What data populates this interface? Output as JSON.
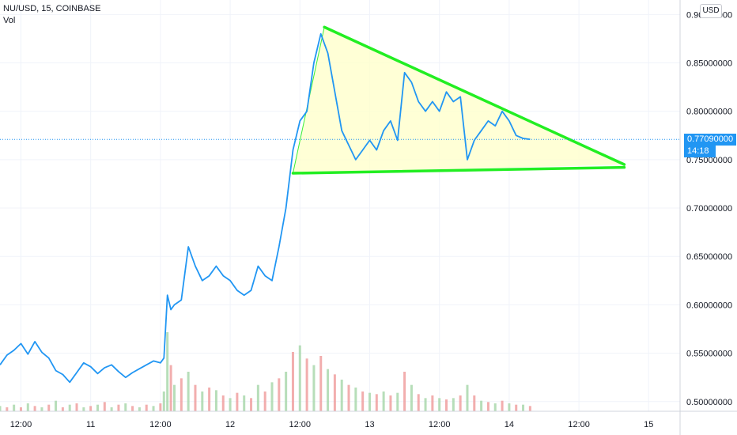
{
  "header": {
    "symbol": "NU/USD, 15, COINBASE",
    "indicator": "Vol",
    "currency_button": "USD"
  },
  "price_tag": {
    "last_price": "0.77090000",
    "countdown": "14:18"
  },
  "colors": {
    "price_line": "#2196f3",
    "last_price_bg": "#2196f3",
    "triangle_stroke": "#22ee22",
    "triangle_fill": "#ffffcc",
    "volume_up": "#a5d6a7",
    "volume_down": "#ef9a9a",
    "grid": "#f0f3fa",
    "axis_text": "#131722"
  },
  "chart_data": {
    "type": "line",
    "series": [
      {
        "values_desc": "close",
        "points": [
          [
            -0.3,
            0.538
          ],
          [
            -0.2,
            0.548
          ],
          [
            -0.1,
            0.553
          ],
          [
            0.0,
            0.56
          ],
          [
            0.1,
            0.549
          ],
          [
            0.2,
            0.562
          ],
          [
            0.3,
            0.551
          ],
          [
            0.4,
            0.545
          ],
          [
            0.5,
            0.532
          ],
          [
            0.6,
            0.528
          ],
          [
            0.7,
            0.52
          ],
          [
            0.8,
            0.53
          ],
          [
            0.9,
            0.54
          ],
          [
            1.0,
            0.536
          ],
          [
            1.1,
            0.529
          ],
          [
            1.2,
            0.535
          ],
          [
            1.3,
            0.538
          ],
          [
            1.4,
            0.531
          ],
          [
            1.5,
            0.525
          ],
          [
            1.6,
            0.53
          ],
          [
            1.7,
            0.534
          ],
          [
            1.8,
            0.538
          ],
          [
            1.9,
            0.542
          ],
          [
            2.0,
            0.54
          ],
          [
            2.05,
            0.545
          ],
          [
            2.1,
            0.61
          ],
          [
            2.15,
            0.595
          ],
          [
            2.2,
            0.6
          ],
          [
            2.3,
            0.605
          ],
          [
            2.4,
            0.66
          ],
          [
            2.5,
            0.64
          ],
          [
            2.6,
            0.625
          ],
          [
            2.7,
            0.63
          ],
          [
            2.8,
            0.64
          ],
          [
            2.9,
            0.63
          ],
          [
            3.0,
            0.625
          ],
          [
            3.1,
            0.615
          ],
          [
            3.2,
            0.61
          ],
          [
            3.3,
            0.615
          ],
          [
            3.4,
            0.64
          ],
          [
            3.5,
            0.63
          ],
          [
            3.6,
            0.625
          ],
          [
            3.7,
            0.66
          ],
          [
            3.8,
            0.7
          ],
          [
            3.9,
            0.76
          ],
          [
            4.0,
            0.79
          ],
          [
            4.1,
            0.8
          ],
          [
            4.2,
            0.85
          ],
          [
            4.3,
            0.88
          ],
          [
            4.4,
            0.86
          ],
          [
            4.5,
            0.82
          ],
          [
            4.6,
            0.78
          ],
          [
            4.7,
            0.765
          ],
          [
            4.8,
            0.75
          ],
          [
            4.9,
            0.76
          ],
          [
            5.0,
            0.77
          ],
          [
            5.1,
            0.76
          ],
          [
            5.2,
            0.78
          ],
          [
            5.3,
            0.79
          ],
          [
            5.4,
            0.77
          ],
          [
            5.5,
            0.84
          ],
          [
            5.6,
            0.83
          ],
          [
            5.7,
            0.81
          ],
          [
            5.8,
            0.8
          ],
          [
            5.9,
            0.81
          ],
          [
            6.0,
            0.8
          ],
          [
            6.1,
            0.82
          ],
          [
            6.2,
            0.81
          ],
          [
            6.3,
            0.815
          ],
          [
            6.4,
            0.75
          ],
          [
            6.5,
            0.77
          ],
          [
            6.6,
            0.78
          ],
          [
            6.7,
            0.79
          ],
          [
            6.8,
            0.785
          ],
          [
            6.9,
            0.8
          ],
          [
            7.0,
            0.79
          ],
          [
            7.1,
            0.775
          ],
          [
            7.2,
            0.772
          ],
          [
            7.3,
            0.771
          ]
        ]
      }
    ],
    "volume": [
      [
        -0.3,
        1,
        0.4
      ],
      [
        -0.2,
        0,
        0.3
      ],
      [
        -0.1,
        1,
        0.5
      ],
      [
        0.0,
        0,
        0.3
      ],
      [
        0.1,
        1,
        0.6
      ],
      [
        0.2,
        0,
        0.4
      ],
      [
        0.3,
        1,
        0.3
      ],
      [
        0.4,
        0,
        0.5
      ],
      [
        0.5,
        1,
        0.8
      ],
      [
        0.6,
        0,
        0.3
      ],
      [
        0.7,
        1,
        0.5
      ],
      [
        0.8,
        0,
        0.6
      ],
      [
        0.9,
        1,
        0.3
      ],
      [
        1.0,
        0,
        0.4
      ],
      [
        1.1,
        1,
        0.5
      ],
      [
        1.2,
        0,
        0.7
      ],
      [
        1.3,
        1,
        0.3
      ],
      [
        1.4,
        0,
        0.5
      ],
      [
        1.5,
        1,
        0.6
      ],
      [
        1.6,
        0,
        0.4
      ],
      [
        1.7,
        1,
        0.3
      ],
      [
        1.8,
        0,
        0.5
      ],
      [
        1.9,
        1,
        0.4
      ],
      [
        2.0,
        0,
        0.6
      ],
      [
        2.05,
        1,
        1.5
      ],
      [
        2.1,
        1,
        6.0
      ],
      [
        2.15,
        0,
        3.5
      ],
      [
        2.2,
        1,
        2.0
      ],
      [
        2.3,
        0,
        2.5
      ],
      [
        2.4,
        1,
        3.0
      ],
      [
        2.5,
        0,
        2.0
      ],
      [
        2.6,
        1,
        1.5
      ],
      [
        2.7,
        0,
        1.8
      ],
      [
        2.8,
        1,
        1.6
      ],
      [
        2.9,
        0,
        1.2
      ],
      [
        3.0,
        1,
        1.0
      ],
      [
        3.1,
        0,
        1.4
      ],
      [
        3.2,
        1,
        1.2
      ],
      [
        3.3,
        0,
        1.0
      ],
      [
        3.4,
        1,
        2.0
      ],
      [
        3.5,
        0,
        1.5
      ],
      [
        3.6,
        1,
        2.2
      ],
      [
        3.7,
        0,
        2.5
      ],
      [
        3.8,
        1,
        3.0
      ],
      [
        3.9,
        0,
        4.5
      ],
      [
        4.0,
        1,
        5.0
      ],
      [
        4.1,
        0,
        4.0
      ],
      [
        4.2,
        1,
        3.5
      ],
      [
        4.3,
        0,
        4.2
      ],
      [
        4.4,
        1,
        3.2
      ],
      [
        4.5,
        0,
        2.8
      ],
      [
        4.6,
        1,
        2.4
      ],
      [
        4.7,
        0,
        2.0
      ],
      [
        4.8,
        1,
        1.8
      ],
      [
        4.9,
        0,
        1.5
      ],
      [
        5.0,
        1,
        1.4
      ],
      [
        5.1,
        0,
        1.3
      ],
      [
        5.2,
        1,
        1.5
      ],
      [
        5.3,
        0,
        1.2
      ],
      [
        5.4,
        1,
        1.4
      ],
      [
        5.5,
        0,
        3.0
      ],
      [
        5.6,
        1,
        2.0
      ],
      [
        5.7,
        0,
        1.3
      ],
      [
        5.8,
        1,
        1.0
      ],
      [
        5.9,
        0,
        1.2
      ],
      [
        6.0,
        1,
        1.0
      ],
      [
        6.1,
        0,
        0.9
      ],
      [
        6.2,
        1,
        1.0
      ],
      [
        6.3,
        0,
        1.2
      ],
      [
        6.4,
        1,
        2.0
      ],
      [
        6.5,
        0,
        1.2
      ],
      [
        6.6,
        1,
        0.8
      ],
      [
        6.7,
        0,
        0.7
      ],
      [
        6.8,
        1,
        0.6
      ],
      [
        6.9,
        0,
        0.8
      ],
      [
        7.0,
        1,
        0.6
      ],
      [
        7.1,
        0,
        0.5
      ],
      [
        7.2,
        1,
        0.5
      ],
      [
        7.3,
        0,
        0.4
      ]
    ],
    "triangle": {
      "apex": [
        4.35,
        0.887
      ],
      "upper_end": [
        8.65,
        0.745
      ],
      "lower_start": [
        3.9,
        0.736
      ],
      "lower_end": [
        8.65,
        0.742
      ]
    },
    "last_price_value": 0.7709,
    "ylim": [
      0.49,
      0.915
    ],
    "xlim": [
      -0.3,
      9.45
    ],
    "y_ticks": [
      {
        "v": 0.9,
        "label": "0.90000000"
      },
      {
        "v": 0.85,
        "label": "0.85000000"
      },
      {
        "v": 0.8,
        "label": "0.80000000"
      },
      {
        "v": 0.75,
        "label": "0.75000000"
      },
      {
        "v": 0.7,
        "label": "0.70000000"
      },
      {
        "v": 0.65,
        "label": "0.65000000"
      },
      {
        "v": 0.6,
        "label": "0.60000000"
      },
      {
        "v": 0.55,
        "label": "0.55000000"
      },
      {
        "v": 0.5,
        "label": "0.50000000"
      }
    ],
    "x_ticks": [
      {
        "v": 0,
        "label": "12:00"
      },
      {
        "v": 1,
        "label": "11"
      },
      {
        "v": 2,
        "label": "12:00"
      },
      {
        "v": 3,
        "label": "12"
      },
      {
        "v": 4,
        "label": "12:00"
      },
      {
        "v": 5,
        "label": "13"
      },
      {
        "v": 6,
        "label": "12:00"
      },
      {
        "v": 7,
        "label": "14"
      },
      {
        "v": 8,
        "label": "12:00"
      },
      {
        "v": 9,
        "label": "15"
      }
    ],
    "grid": true
  }
}
